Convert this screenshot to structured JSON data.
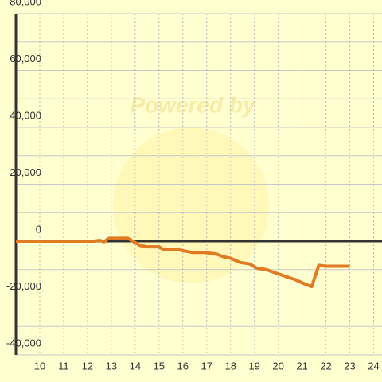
{
  "chart_data": {
    "type": "line",
    "watermark": "Powered by",
    "x": [
      9,
      12.3,
      12.5,
      12.7,
      12.9,
      13.7,
      13.9,
      14.2,
      14.5,
      15,
      15.2,
      15.8,
      16.1,
      16.4,
      16.9,
      17.4,
      17.7,
      18,
      18.4,
      18.8,
      19.1,
      19.5,
      20,
      20.7,
      21.1,
      21.4,
      21.7,
      22,
      23
    ],
    "values": [
      0,
      0,
      300,
      -200,
      1000,
      1000,
      0,
      -1500,
      -2000,
      -2000,
      -3000,
      -3000,
      -3500,
      -4000,
      -4000,
      -4500,
      -5500,
      -6000,
      -7500,
      -8000,
      -9500,
      -10000,
      -11500,
      -13500,
      -15000,
      -16000,
      -8500,
      -8800,
      -8800
    ],
    "color": "#e07b24",
    "xlim": [
      9,
      24.35
    ],
    "xticks": [
      10,
      11,
      12,
      13,
      14,
      15,
      16,
      17,
      18,
      19,
      20,
      21,
      22,
      23,
      24
    ],
    "ylim": [
      -40000,
      80000
    ],
    "yticks": [
      {
        "value": -40000,
        "label": "-40,000"
      },
      {
        "value": -20000,
        "label": "-20,000"
      },
      0,
      {
        "value": 20000,
        "label": "20,000"
      },
      {
        "value": 40000,
        "label": "40,000"
      },
      {
        "value": 60000,
        "label": "60,000"
      },
      {
        "value": 80000,
        "label": "80,000"
      }
    ],
    "y_minor_ticks": [
      -30000,
      -10000,
      10000,
      30000,
      50000,
      70000
    ],
    "grid": true
  }
}
